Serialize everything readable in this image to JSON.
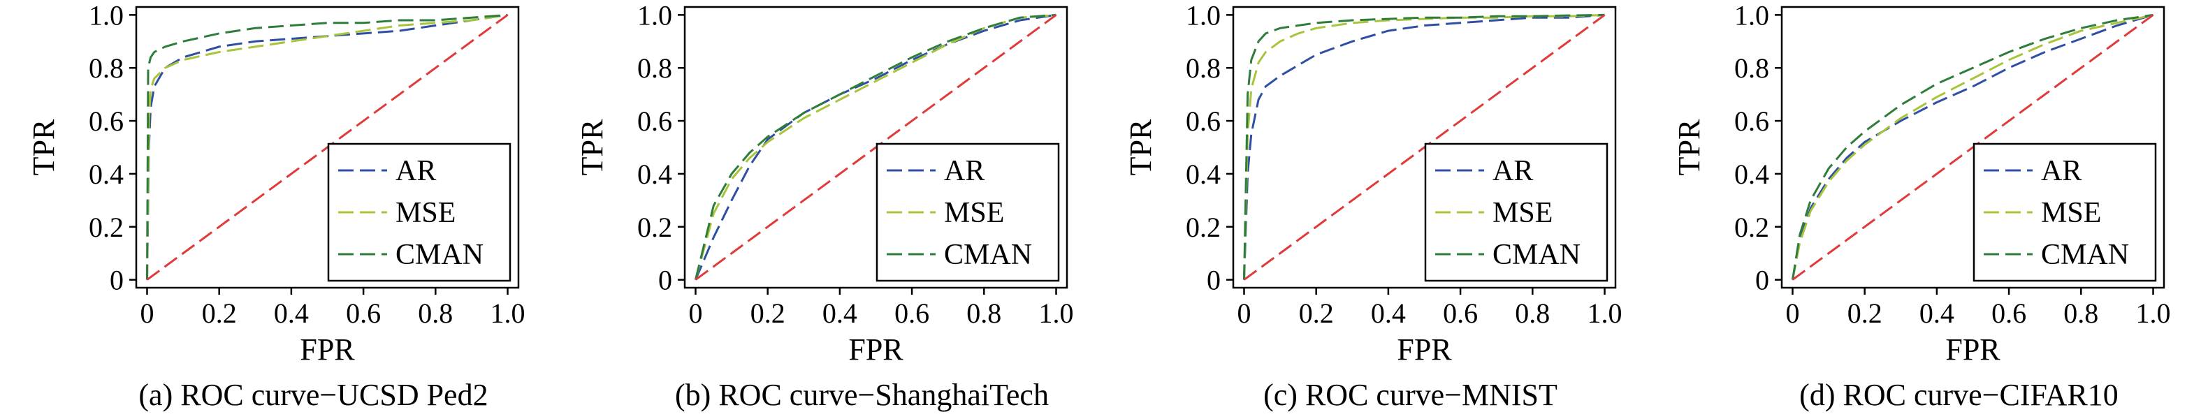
{
  "figure": {
    "colors": {
      "AR": "#2e4fa3",
      "MSE": "#a8c43a",
      "CMAN": "#2e7d3a",
      "random": "#e03a3a",
      "axis": "#000000"
    }
  },
  "chart_data": [
    {
      "type": "line",
      "caption": "(a) ROC curve−UCSD Ped2",
      "xlabel": "FPR",
      "ylabel": "TPR",
      "xlim": [
        0,
        1.0
      ],
      "ylim": [
        0,
        1.0
      ],
      "xticks": [
        "0",
        "0.2",
        "0.4",
        "0.6",
        "0.8",
        "1.0"
      ],
      "yticks": [
        "0",
        "0.2",
        "0.4",
        "0.6",
        "0.8",
        "1.0"
      ],
      "grid": false,
      "legend_position": "bottom-right",
      "series": [
        {
          "name": "AR",
          "x": [
            0,
            0.005,
            0.01,
            0.02,
            0.05,
            0.1,
            0.2,
            0.3,
            0.4,
            0.5,
            0.6,
            0.7,
            0.8,
            0.9,
            1.0
          ],
          "y": [
            0,
            0.5,
            0.65,
            0.73,
            0.8,
            0.84,
            0.88,
            0.9,
            0.91,
            0.92,
            0.93,
            0.94,
            0.96,
            0.98,
            1.0
          ]
        },
        {
          "name": "MSE",
          "x": [
            0,
            0.005,
            0.01,
            0.02,
            0.05,
            0.1,
            0.2,
            0.3,
            0.4,
            0.5,
            0.6,
            0.7,
            0.8,
            0.9,
            1.0
          ],
          "y": [
            0,
            0.6,
            0.72,
            0.76,
            0.8,
            0.83,
            0.86,
            0.88,
            0.9,
            0.92,
            0.94,
            0.96,
            0.97,
            0.98,
            1.0
          ]
        },
        {
          "name": "CMAN",
          "x": [
            0,
            0.003,
            0.01,
            0.02,
            0.05,
            0.1,
            0.2,
            0.3,
            0.4,
            0.5,
            0.6,
            0.7,
            0.8,
            0.9,
            1.0
          ],
          "y": [
            0,
            0.8,
            0.84,
            0.86,
            0.88,
            0.9,
            0.93,
            0.95,
            0.96,
            0.97,
            0.97,
            0.98,
            0.98,
            0.99,
            1.0
          ]
        },
        {
          "name": "random",
          "x": [
            0,
            1.0
          ],
          "y": [
            0,
            1.0
          ]
        }
      ]
    },
    {
      "type": "line",
      "caption": "(b) ROC curve−ShanghaiTech",
      "xlabel": "FPR",
      "ylabel": "TPR",
      "xlim": [
        0,
        1.0
      ],
      "ylim": [
        0,
        1.0
      ],
      "xticks": [
        "0",
        "0.2",
        "0.4",
        "0.6",
        "0.8",
        "1.0"
      ],
      "yticks": [
        "0",
        "0.2",
        "0.4",
        "0.6",
        "0.8",
        "1.0"
      ],
      "grid": false,
      "legend_position": "bottom-right",
      "series": [
        {
          "name": "AR",
          "x": [
            0,
            0.05,
            0.1,
            0.15,
            0.2,
            0.3,
            0.4,
            0.5,
            0.6,
            0.7,
            0.8,
            0.9,
            1.0
          ],
          "y": [
            0,
            0.16,
            0.3,
            0.43,
            0.53,
            0.63,
            0.7,
            0.76,
            0.83,
            0.89,
            0.94,
            0.98,
            1.0
          ]
        },
        {
          "name": "MSE",
          "x": [
            0,
            0.05,
            0.1,
            0.15,
            0.2,
            0.3,
            0.4,
            0.5,
            0.6,
            0.7,
            0.8,
            0.9,
            1.0
          ],
          "y": [
            0,
            0.25,
            0.38,
            0.46,
            0.52,
            0.61,
            0.68,
            0.75,
            0.82,
            0.89,
            0.95,
            0.99,
            1.0
          ]
        },
        {
          "name": "CMAN",
          "x": [
            0,
            0.05,
            0.1,
            0.15,
            0.2,
            0.3,
            0.4,
            0.5,
            0.6,
            0.7,
            0.8,
            0.9,
            1.0
          ],
          "y": [
            0,
            0.28,
            0.4,
            0.48,
            0.54,
            0.63,
            0.7,
            0.77,
            0.84,
            0.9,
            0.95,
            0.99,
            1.0
          ]
        },
        {
          "name": "random",
          "x": [
            0,
            1.0
          ],
          "y": [
            0,
            1.0
          ]
        }
      ]
    },
    {
      "type": "line",
      "caption": "(c) ROC curve−MNIST",
      "xlabel": "FPR",
      "ylabel": "TPR",
      "xlim": [
        0,
        1.0
      ],
      "ylim": [
        0,
        1.0
      ],
      "xticks": [
        "0",
        "0.2",
        "0.4",
        "0.6",
        "0.8",
        "1.0"
      ],
      "yticks": [
        "0",
        "0.2",
        "0.4",
        "0.6",
        "0.8",
        "1.0"
      ],
      "grid": false,
      "legend_position": "bottom-right",
      "series": [
        {
          "name": "AR",
          "x": [
            0,
            0.01,
            0.02,
            0.04,
            0.06,
            0.1,
            0.15,
            0.2,
            0.3,
            0.4,
            0.5,
            0.6,
            0.7,
            0.8,
            0.9,
            1.0
          ],
          "y": [
            0,
            0.4,
            0.55,
            0.68,
            0.73,
            0.77,
            0.81,
            0.85,
            0.9,
            0.94,
            0.96,
            0.97,
            0.98,
            0.99,
            0.99,
            1.0
          ]
        },
        {
          "name": "MSE",
          "x": [
            0,
            0.01,
            0.02,
            0.04,
            0.06,
            0.1,
            0.15,
            0.2,
            0.3,
            0.4,
            0.5,
            0.6,
            0.7,
            0.8,
            0.9,
            1.0
          ],
          "y": [
            0,
            0.55,
            0.72,
            0.82,
            0.86,
            0.9,
            0.93,
            0.95,
            0.97,
            0.98,
            0.985,
            0.99,
            0.99,
            0.995,
            0.995,
            1.0
          ]
        },
        {
          "name": "CMAN",
          "x": [
            0,
            0.01,
            0.02,
            0.04,
            0.06,
            0.1,
            0.15,
            0.2,
            0.3,
            0.4,
            0.5,
            0.6,
            0.7,
            0.8,
            0.9,
            1.0
          ],
          "y": [
            0,
            0.7,
            0.83,
            0.9,
            0.93,
            0.95,
            0.96,
            0.97,
            0.98,
            0.985,
            0.99,
            0.99,
            0.995,
            0.995,
            0.998,
            1.0
          ]
        },
        {
          "name": "random",
          "x": [
            0,
            1.0
          ],
          "y": [
            0,
            1.0
          ]
        }
      ]
    },
    {
      "type": "line",
      "caption": "(d) ROC curve−CIFAR10",
      "xlabel": "FPR",
      "ylabel": "TPR",
      "xlim": [
        0,
        1.0
      ],
      "ylim": [
        0,
        1.0
      ],
      "xticks": [
        "0",
        "0.2",
        "0.4",
        "0.6",
        "0.8",
        "1.0"
      ],
      "yticks": [
        "0",
        "0.2",
        "0.4",
        "0.6",
        "0.8",
        "1.0"
      ],
      "grid": false,
      "legend_position": "bottom-right",
      "series": [
        {
          "name": "AR",
          "x": [
            0,
            0.02,
            0.05,
            0.1,
            0.15,
            0.2,
            0.3,
            0.4,
            0.5,
            0.6,
            0.7,
            0.8,
            0.9,
            1.0
          ],
          "y": [
            0,
            0.15,
            0.27,
            0.38,
            0.46,
            0.52,
            0.6,
            0.67,
            0.73,
            0.8,
            0.86,
            0.91,
            0.96,
            1.0
          ]
        },
        {
          "name": "MSE",
          "x": [
            0,
            0.02,
            0.05,
            0.1,
            0.15,
            0.2,
            0.3,
            0.4,
            0.5,
            0.6,
            0.7,
            0.8,
            0.9,
            1.0
          ],
          "y": [
            0,
            0.14,
            0.26,
            0.37,
            0.45,
            0.51,
            0.61,
            0.69,
            0.76,
            0.83,
            0.89,
            0.94,
            0.97,
            1.0
          ]
        },
        {
          "name": "CMAN",
          "x": [
            0,
            0.02,
            0.05,
            0.1,
            0.15,
            0.2,
            0.3,
            0.4,
            0.5,
            0.6,
            0.7,
            0.8,
            0.9,
            1.0
          ],
          "y": [
            0,
            0.17,
            0.3,
            0.42,
            0.5,
            0.56,
            0.66,
            0.74,
            0.8,
            0.86,
            0.91,
            0.95,
            0.98,
            1.0
          ]
        },
        {
          "name": "random",
          "x": [
            0,
            1.0
          ],
          "y": [
            0,
            1.0
          ]
        }
      ]
    }
  ]
}
